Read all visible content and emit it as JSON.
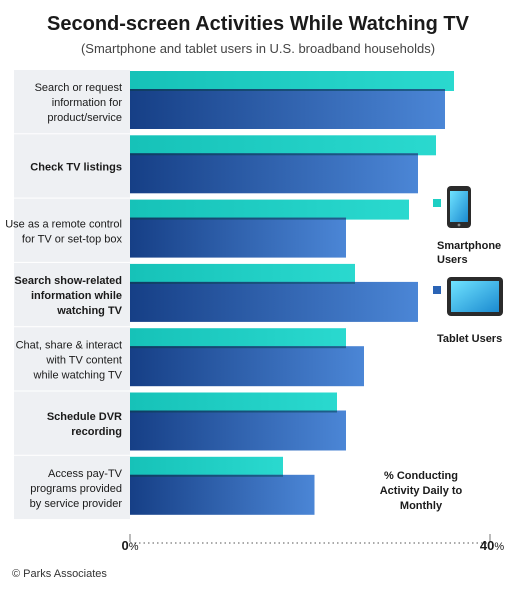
{
  "chart_data": {
    "type": "bar",
    "orientation": "horizontal",
    "title": "Second-screen Activities While Watching TV",
    "subtitle": "(Smartphone and tablet users in U.S. broadband households)",
    "categories": [
      [
        "Search or request",
        "information for",
        "product/service"
      ],
      [
        "Check TV listings"
      ],
      [
        "Use as a remote control",
        "for TV or set-top box"
      ],
      [
        "Search show-related",
        "information while",
        "watching TV"
      ],
      [
        "Chat, share & interact",
        "with TV content",
        "while watching TV"
      ],
      [
        "Schedule DVR",
        "recording"
      ],
      [
        "Access pay-TV",
        "programs provided",
        "by service provider"
      ]
    ],
    "category_bold": [
      false,
      true,
      false,
      true,
      false,
      true,
      false
    ],
    "series": [
      {
        "name": "Smartphone Users",
        "color": "#1ecfc4",
        "values": [
          36,
          34,
          31,
          25,
          24,
          23,
          17
        ]
      },
      {
        "name": "Tablet Users",
        "color": "#2a63b5",
        "values": [
          35,
          32,
          24,
          32,
          26,
          24,
          20.5
        ]
      }
    ],
    "xlim": [
      0,
      40
    ],
    "x_tick_labels": {
      "min": "0",
      "max": "40",
      "unit": "%"
    },
    "legend_position": "right",
    "legend_icons": [
      "smartphone-icon",
      "tablet-icon"
    ],
    "annotation": [
      "% Conducting",
      "Activity Daily to",
      "Monthly"
    ],
    "grid": false
  },
  "credit": "© Parks Associates"
}
